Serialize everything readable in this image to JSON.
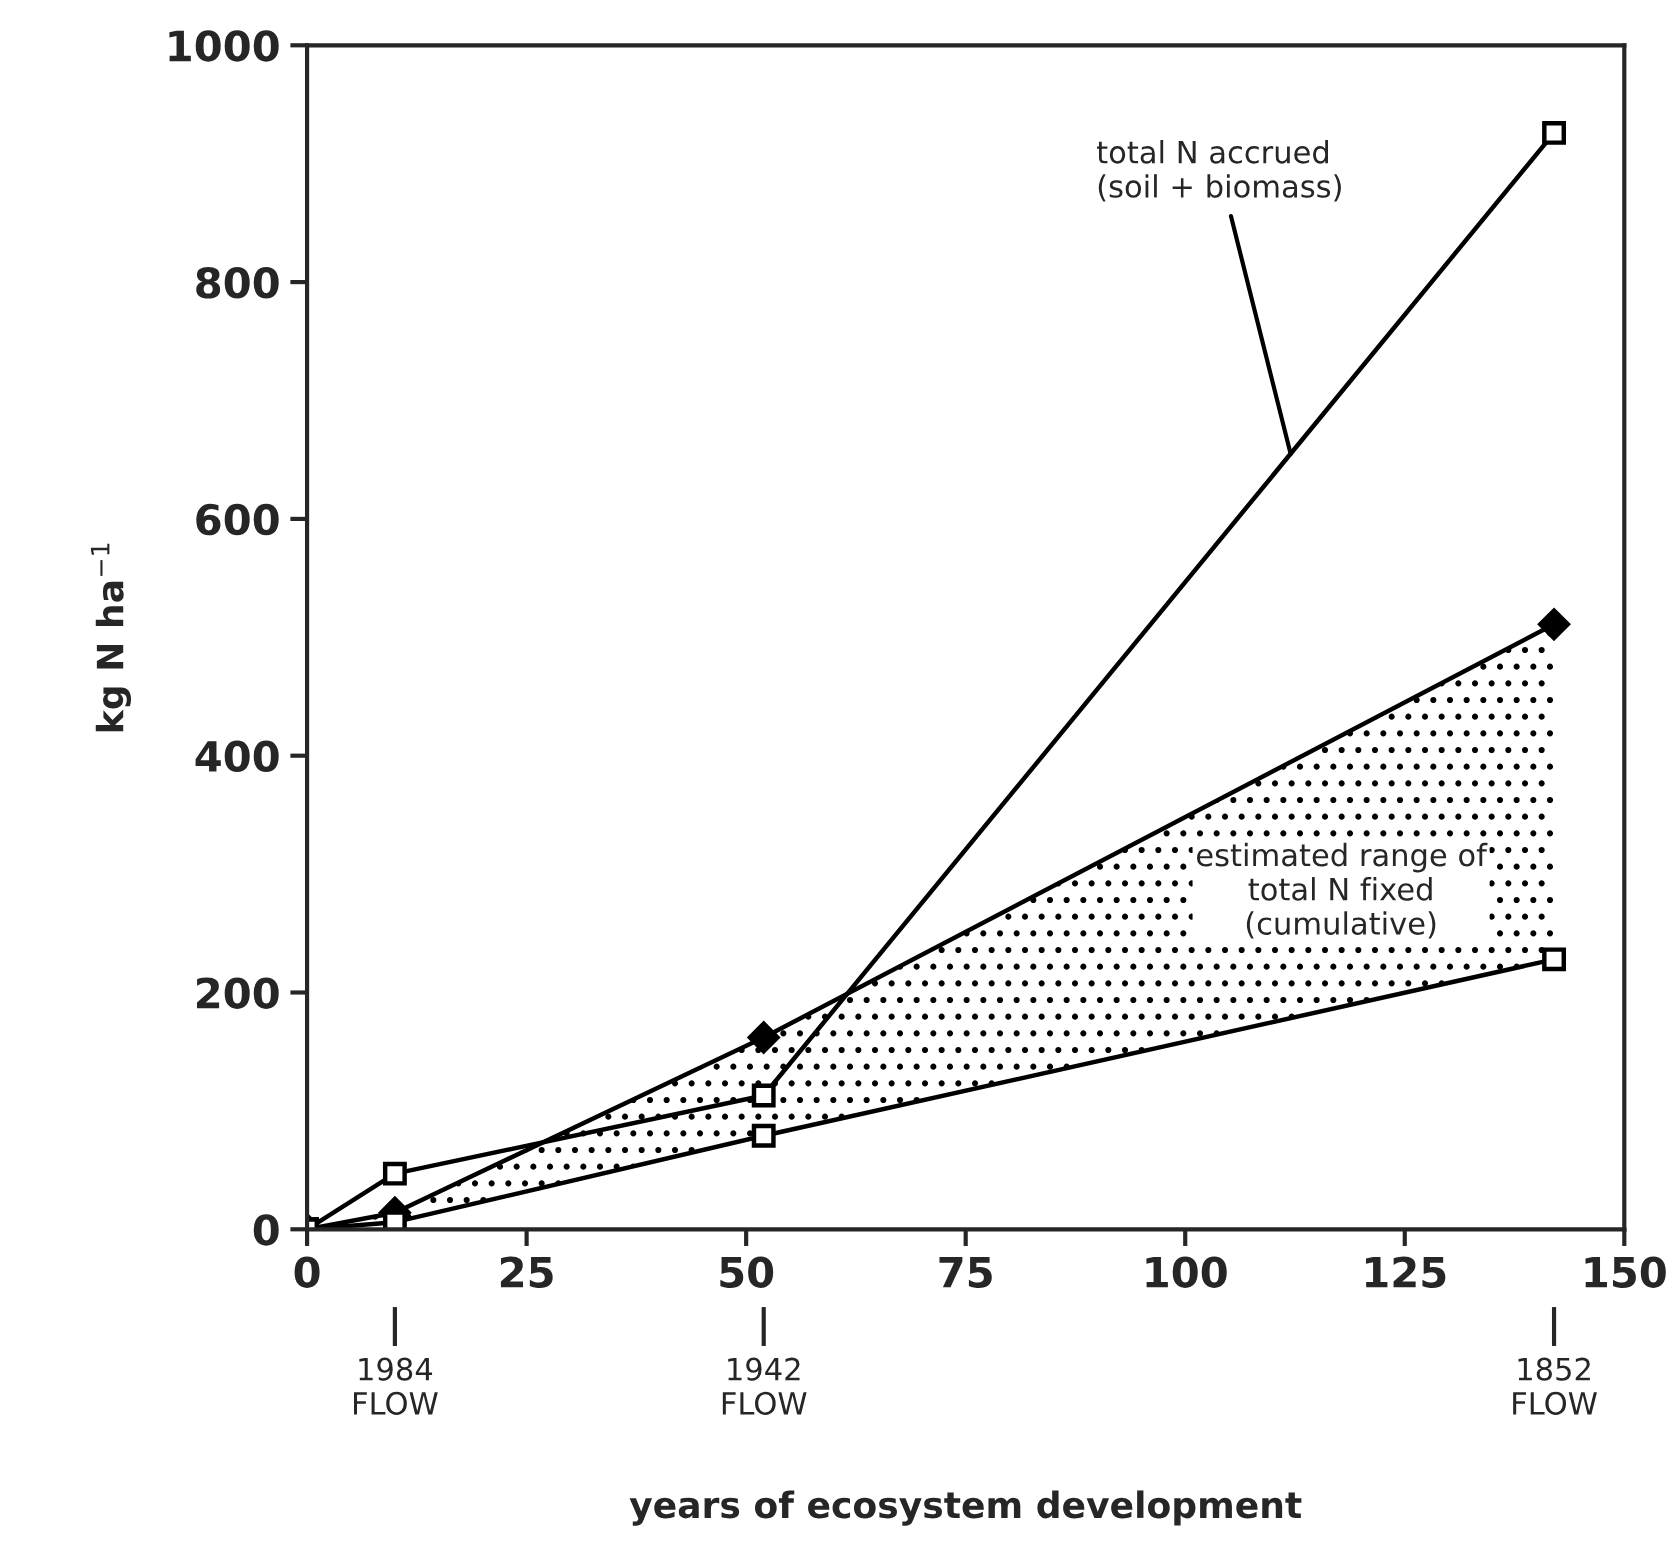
{
  "chart_data": {
    "type": "line",
    "xlabel": "years of ecosystem development",
    "ylabel": "kg N ha$^{−1}$",
    "x": [
      0,
      10,
      52,
      142
    ],
    "series": [
      {
        "color": "#000000",
        "marker": "diamond",
        "values": [
          0,
          14,
          162,
          511
        ],
        "lower": [
          0,
          6,
          79,
          228
        ],
        "upper": [
          0,
          14,
          162,
          511
        ]
      },
      {
        "color": "#000000",
        "marker": "square",
        "values": [
          0,
          47,
          113,
          926
        ]
      },
      {
        "color": "#000000",
        "marker": "square",
        "values": [
          0,
          6,
          79,
          228
        ]
      }
    ],
    "xlim": [
      0,
      150
    ],
    "xticks": [
      0,
      25,
      50,
      75,
      100,
      125,
      150
    ],
    "ylim": [
      0,
      1000
    ],
    "yticks": [
      0,
      200,
      400,
      600,
      800,
      1000
    ],
    "x2lim": [
      1994,
      1844
    ],
    "x2ticks": [
      {
        "value": 1984,
        "label": "1984\nFLOW"
      },
      {
        "value": 1942,
        "label": "1942\nFLOW"
      },
      {
        "value": 1852,
        "label": "1852\nFLOW"
      }
    ],
    "annotations": [
      {
        "text": "total N accrued\n(soil + biomass)",
        "x": 112,
        "y": 655
      },
      "estimated range of\ntotal N fixed\n(cumulative)"
    ],
    "grid": false,
    "legend": false,
    "line_style": "solid"
  }
}
